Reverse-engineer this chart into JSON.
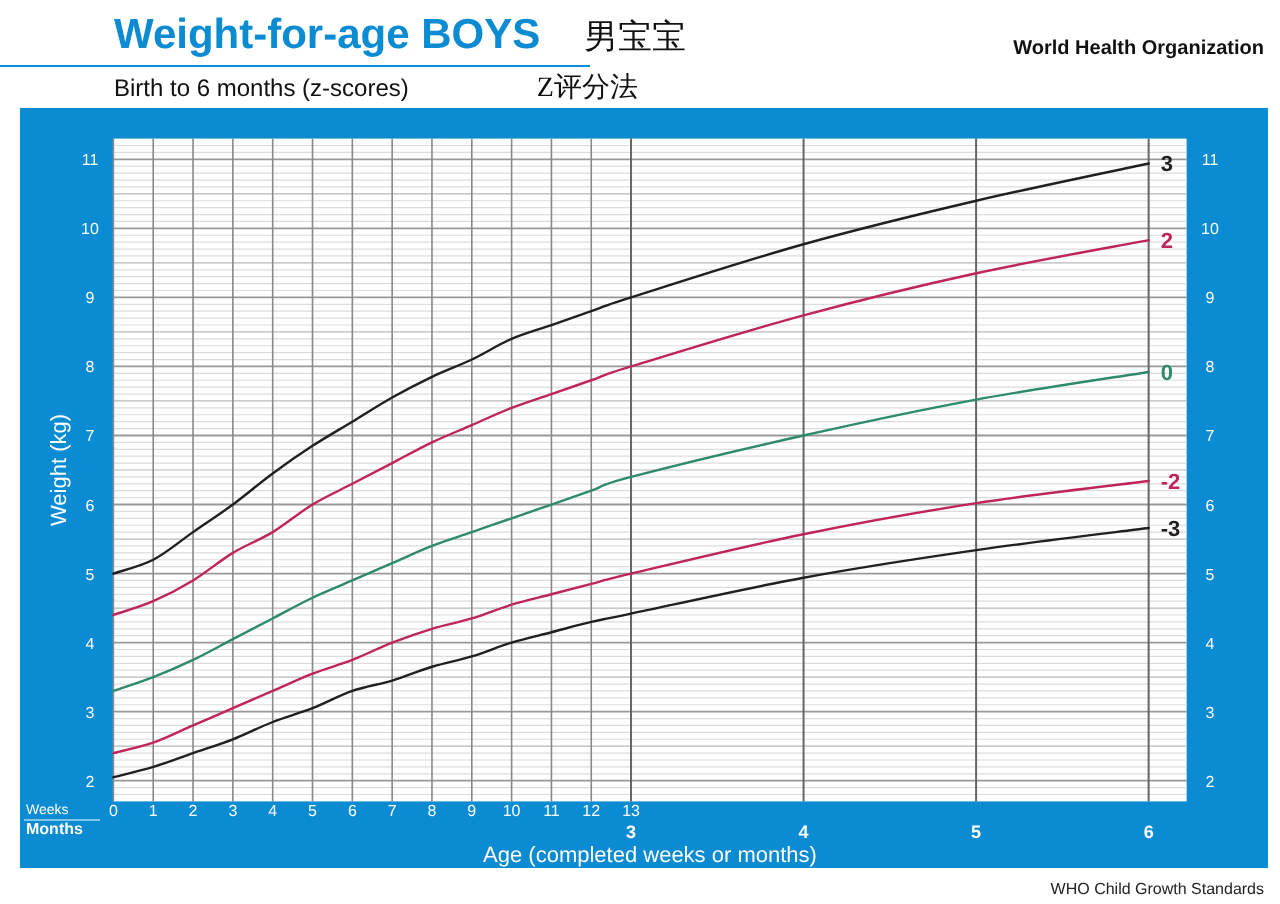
{
  "chart_data": {
    "type": "line",
    "title": "Weight-for-age BOYS 男宝宝",
    "subtitle": "Birth to 6 months (z-scores) Z评分法",
    "xlabel": "Age (completed weeks or months)",
    "ylabel": "Weight (kg)",
    "x": [
      0,
      1,
      2,
      3,
      4,
      5,
      6,
      7,
      8,
      9,
      10,
      11,
      12,
      13,
      17.33,
      21.67,
      26
    ],
    "series": [
      {
        "name": "3",
        "color": "#231f20",
        "values": [
          5.0,
          5.2,
          5.6,
          6.0,
          6.45,
          6.85,
          7.2,
          7.55,
          7.85,
          8.1,
          8.4,
          8.6,
          8.8,
          9.0,
          9.77,
          10.4,
          10.94
        ]
      },
      {
        "name": "2",
        "color": "#c0245c",
        "values": [
          4.4,
          4.6,
          4.9,
          5.3,
          5.6,
          6.0,
          6.3,
          6.6,
          6.9,
          7.15,
          7.4,
          7.6,
          7.8,
          8.0,
          8.74,
          9.35,
          9.83
        ]
      },
      {
        "name": "0",
        "color": "#2e8b6a",
        "values": [
          3.3,
          3.5,
          3.75,
          4.05,
          4.35,
          4.65,
          4.9,
          5.15,
          5.4,
          5.6,
          5.8,
          6.0,
          6.2,
          6.4,
          7.0,
          7.52,
          7.92
        ]
      },
      {
        "name": "-2",
        "color": "#c0245c",
        "values": [
          2.4,
          2.55,
          2.8,
          3.05,
          3.3,
          3.55,
          3.75,
          4.0,
          4.2,
          4.35,
          4.55,
          4.7,
          4.85,
          5.0,
          5.57,
          6.02,
          6.34
        ]
      },
      {
        "name": "-3",
        "color": "#231f20",
        "values": [
          2.05,
          2.2,
          2.4,
          2.6,
          2.85,
          3.05,
          3.3,
          3.45,
          3.65,
          3.8,
          4.0,
          4.15,
          4.3,
          4.42,
          4.94,
          5.34,
          5.66
        ]
      }
    ],
    "xlim": [
      0,
      26.95
    ],
    "xticks": [
      0,
      1,
      2,
      3,
      4,
      5,
      6,
      7,
      8,
      9,
      10,
      11,
      12,
      13
    ],
    "x2lim": [
      0,
      6.22
    ],
    "x2ticks": [
      3,
      4,
      5,
      6
    ],
    "ylim": [
      1.7,
      11.3
    ],
    "yticks": [
      2,
      3,
      4,
      5,
      6,
      7,
      8,
      9,
      10,
      11
    ],
    "y2lim": [
      1.7,
      11.3
    ],
    "y2ticks": [
      2,
      3,
      4,
      5,
      6,
      7,
      8,
      9,
      10,
      11
    ],
    "grid": true,
    "marker": "none",
    "line_style": "solid",
    "annotations": [
      "Weeks",
      "Months",
      "World Health Organization",
      "WHO Child Growth Standards"
    ]
  }
}
